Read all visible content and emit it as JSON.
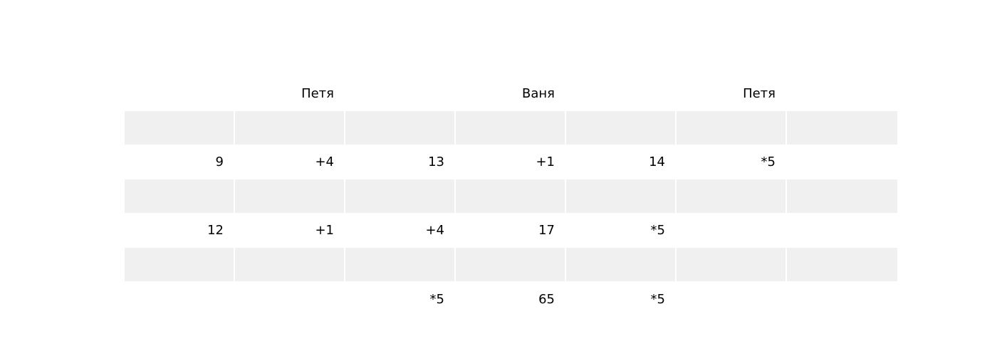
{
  "chart_data": {
    "type": "table",
    "headers": [
      "",
      "Петя",
      "",
      "Ваня",
      "",
      "Петя",
      ""
    ],
    "rows": [
      [
        "",
        "",
        "",
        "",
        "",
        "",
        ""
      ],
      [
        "9",
        "+4",
        "13",
        "+1",
        "14",
        "*5",
        ""
      ],
      [
        "",
        "",
        "",
        "",
        "",
        "",
        ""
      ],
      [
        "12",
        "+1",
        "+4",
        "17",
        "*5",
        "",
        ""
      ],
      [
        "",
        "",
        "",
        "",
        "",
        "",
        ""
      ],
      [
        "",
        "",
        "*5",
        "65",
        "*5",
        "",
        ""
      ]
    ],
    "colors": {
      "shaded_row": "#f0f0f0",
      "plain_row": "#ffffff",
      "text": "#000000"
    }
  }
}
